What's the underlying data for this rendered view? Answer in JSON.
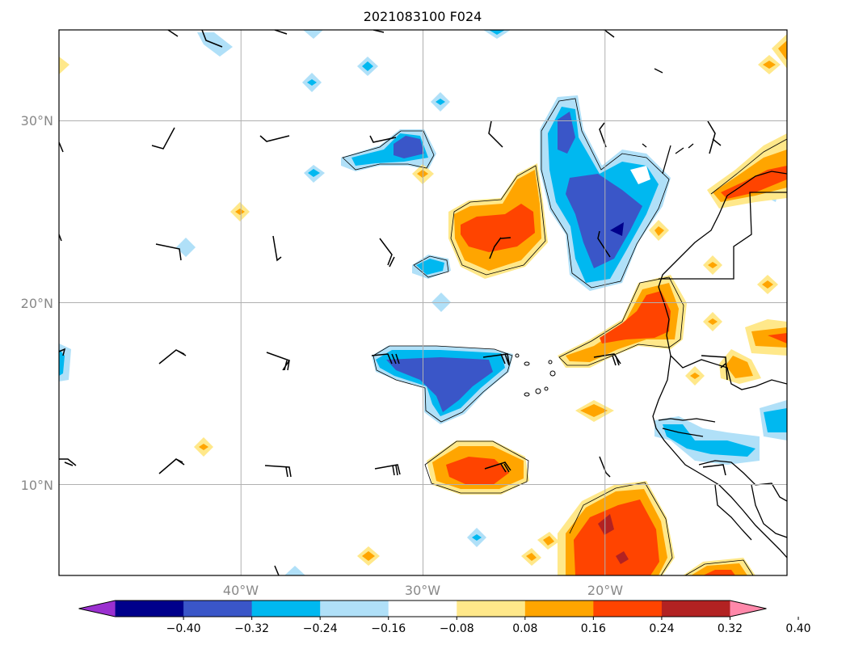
{
  "map": {
    "title": "2021083100 F024",
    "lat_labels": [
      "30°N",
      "20°N",
      "10°N"
    ],
    "lon_labels": [
      "40°W",
      "30°W",
      "20°W"
    ],
    "lat_range": [
      5,
      35
    ],
    "lon_range": [
      -50,
      -10
    ],
    "lat_grid": [
      30,
      20,
      10
    ],
    "lon_grid": [
      -40,
      -30,
      -20
    ],
    "grid": true
  },
  "colorbar": {
    "ticks": [
      "−0.40",
      "−0.32",
      "−0.24",
      "−0.16",
      "−0.08",
      "0.08",
      "0.16",
      "0.24",
      "0.32",
      "0.40"
    ],
    "colors": [
      "#9b30d0",
      "#00008b",
      "#3a56c8",
      "#00b8f0",
      "#b0e0f8",
      "#ffffff",
      "#ffe88a",
      "#ffa500",
      "#ff4400",
      "#b22222",
      "#ff88aa"
    ],
    "extend": "both"
  }
}
